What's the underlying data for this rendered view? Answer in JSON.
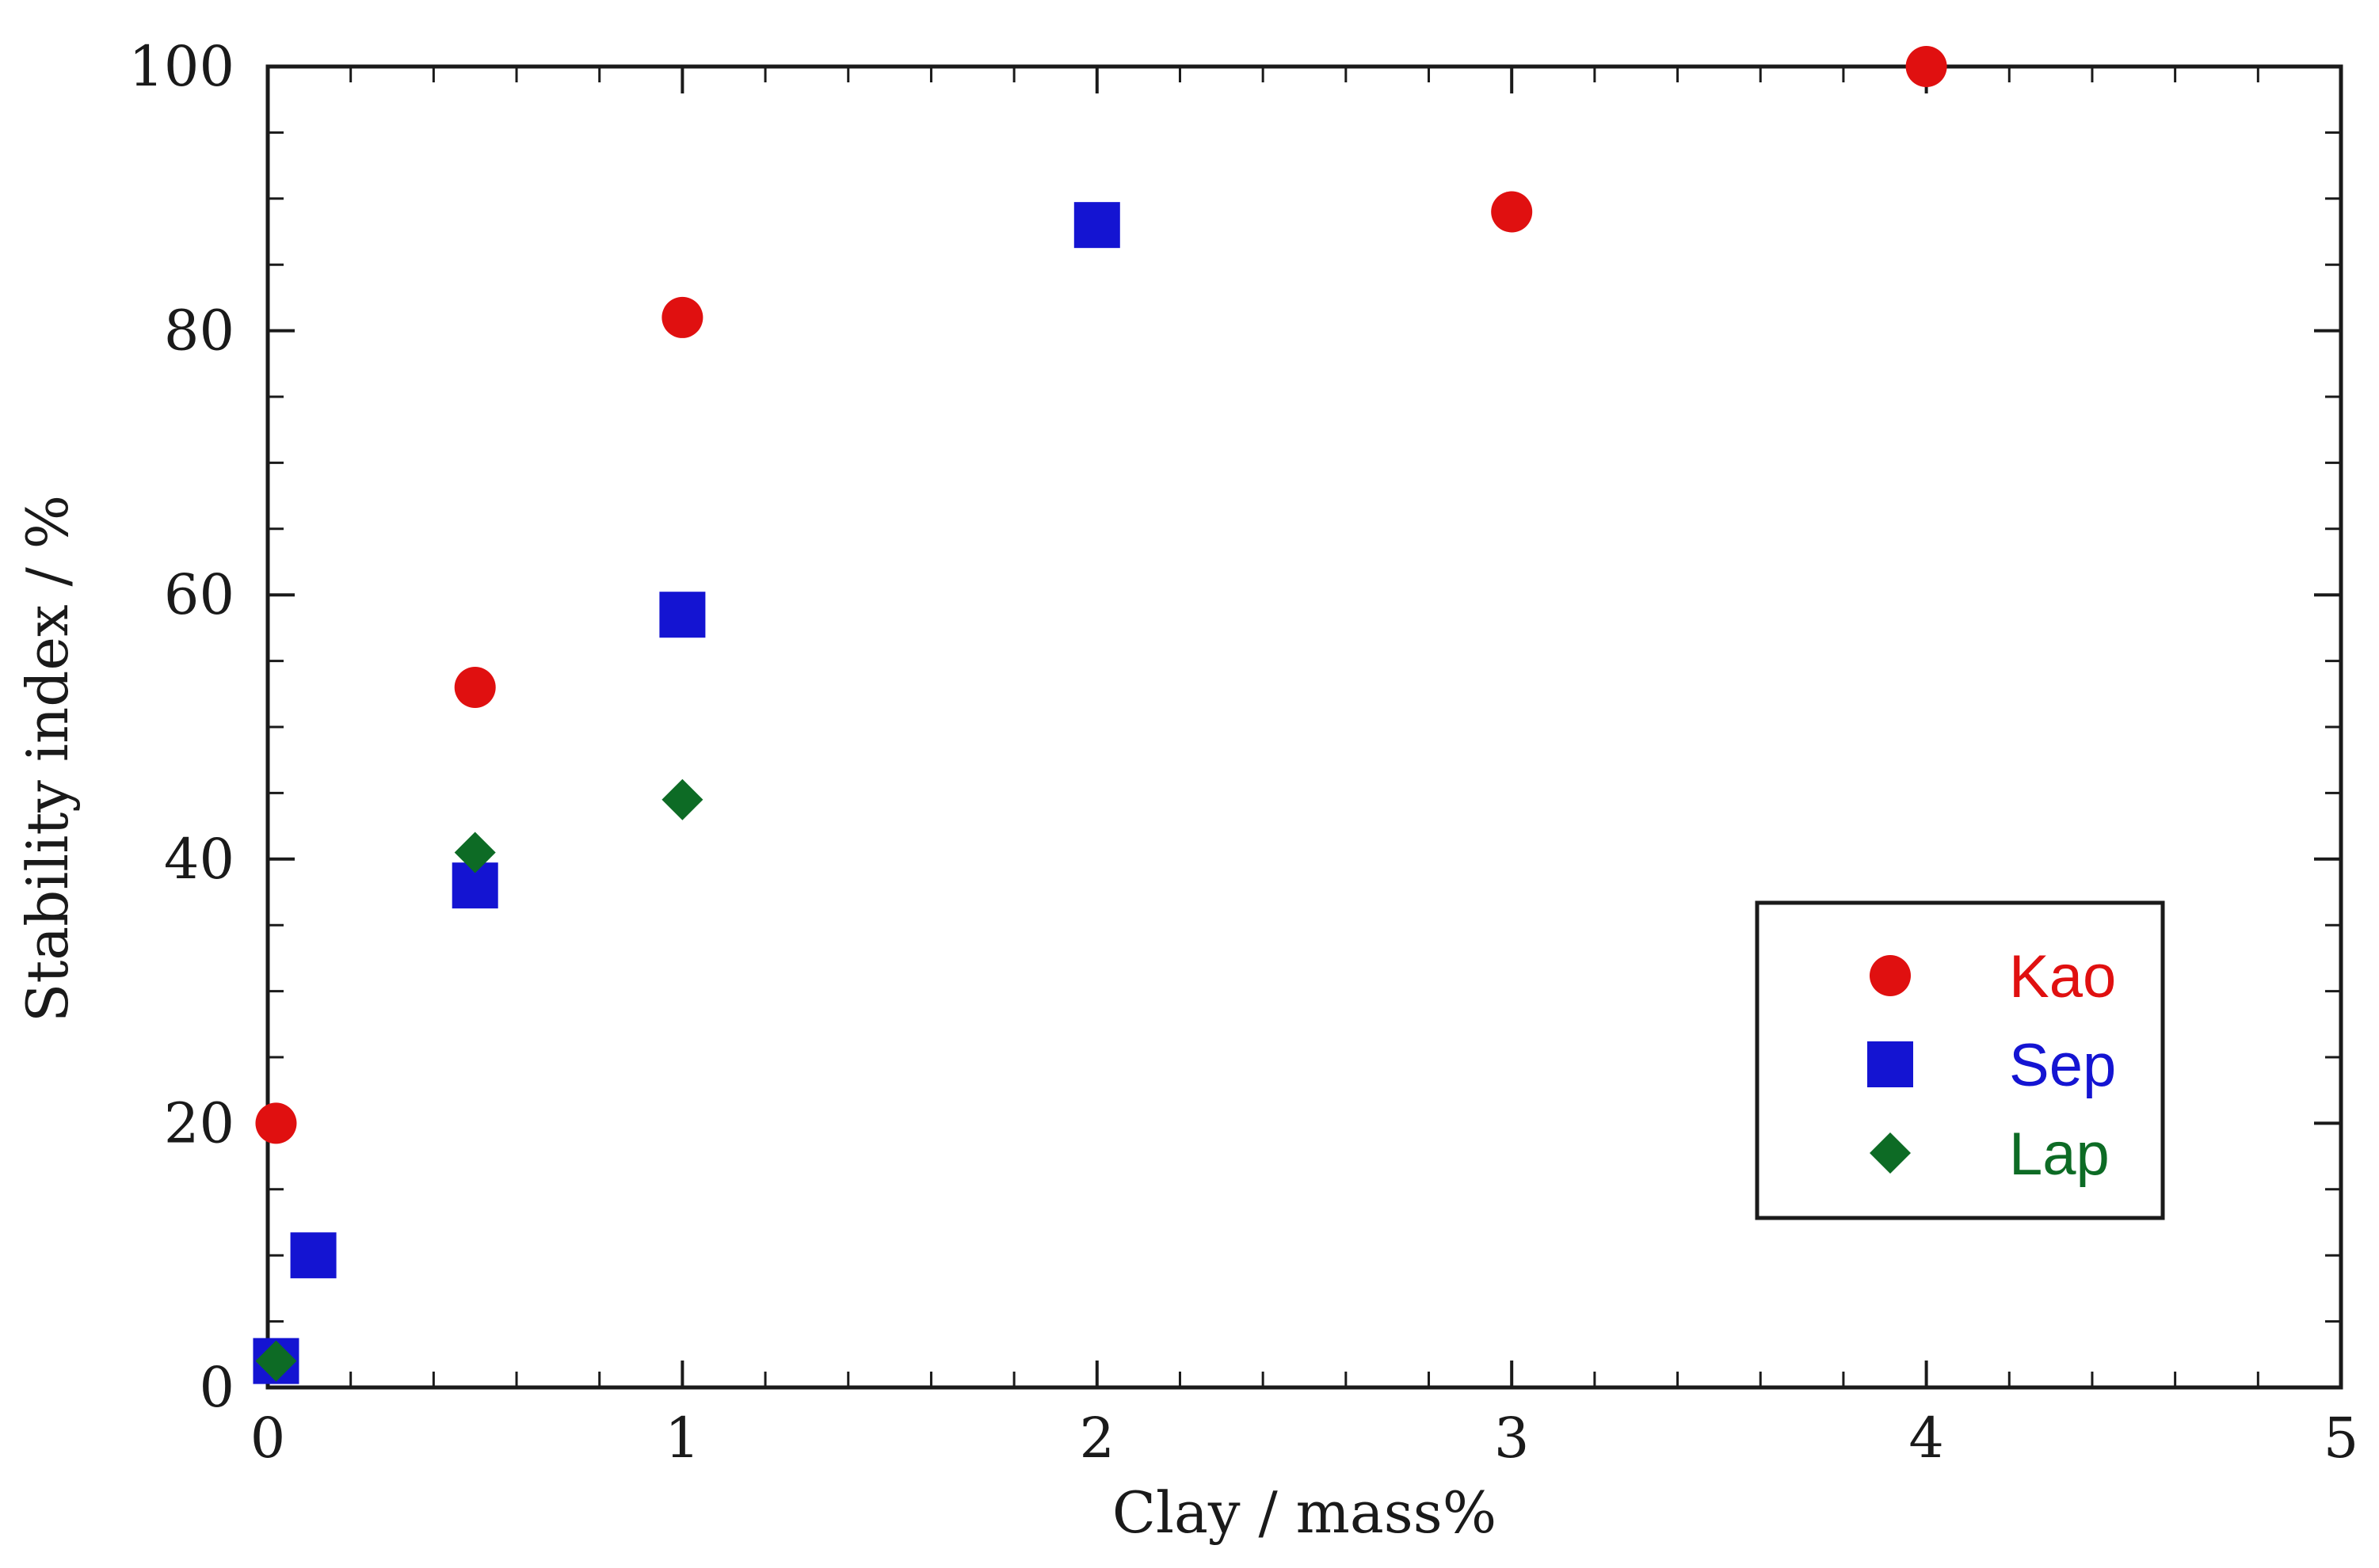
{
  "chart_data": {
    "type": "scatter",
    "xlabel": "Clay / mass%",
    "ylabel": "Stability index / %",
    "xlim": [
      0,
      5
    ],
    "ylim": [
      0,
      100
    ],
    "x_ticks": [
      "0",
      "1",
      "2",
      "3",
      "4",
      "5"
    ],
    "y_ticks": [
      "0",
      "20",
      "40",
      "60",
      "80",
      "100"
    ],
    "grid": false,
    "legend_position": "bottom-right",
    "series": [
      {
        "name": "Kao",
        "marker": "circle",
        "color": "#e01010",
        "points": [
          [
            0.02,
            20
          ],
          [
            0.5,
            53
          ],
          [
            1,
            81
          ],
          [
            3,
            89
          ],
          [
            4,
            100
          ]
        ]
      },
      {
        "name": "Sep",
        "marker": "square",
        "color": "#1414d2",
        "points": [
          [
            0.02,
            2
          ],
          [
            0.11,
            10
          ],
          [
            0.5,
            38
          ],
          [
            1,
            58.5
          ],
          [
            2,
            88
          ]
        ]
      },
      {
        "name": "Lap",
        "marker": "diamond",
        "color": "#0d6b25",
        "points": [
          [
            0.02,
            2
          ],
          [
            0.5,
            40.5
          ],
          [
            1,
            44.5
          ]
        ]
      }
    ]
  }
}
